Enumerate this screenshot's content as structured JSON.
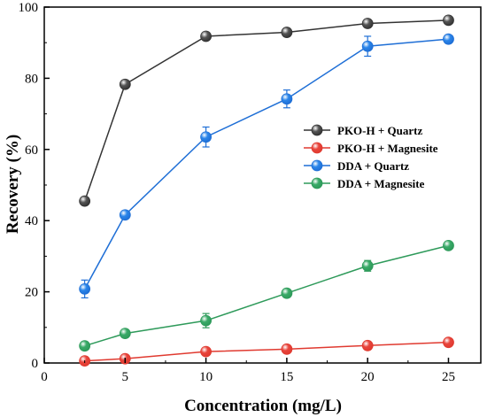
{
  "chart_data": {
    "type": "line",
    "xlabel": "Concentration (mg/L)",
    "ylabel": "Recovery (%)",
    "xlim": [
      0,
      27
    ],
    "ylim": [
      0,
      100
    ],
    "xticks": [
      0,
      5,
      10,
      15,
      20,
      25
    ],
    "yticks": [
      0,
      20,
      40,
      60,
      80,
      100
    ],
    "x": [
      2.5,
      5,
      10,
      15,
      20,
      25
    ],
    "grid": false,
    "legend_position": "right",
    "series": [
      {
        "name": "PKO-H + Quartz",
        "color": "#333333",
        "marker_fill": "#555555",
        "values": [
          45.5,
          78.3,
          91.8,
          92.9,
          95.4,
          96.3
        ],
        "errors": [
          0,
          0,
          0,
          0,
          0,
          0
        ]
      },
      {
        "name": "PKO-H + Magnesite",
        "color": "#e03a30",
        "marker_fill": "#e8453c",
        "values": [
          0.6,
          1.2,
          3.2,
          3.9,
          4.9,
          5.8
        ],
        "errors": [
          0,
          0,
          0,
          0,
          0,
          0
        ]
      },
      {
        "name": "DDA + Quartz",
        "color": "#1f6fd6",
        "marker_fill": "#2b86ea",
        "values": [
          20.8,
          41.6,
          63.5,
          74.2,
          89.0,
          91.0
        ],
        "errors": [
          2.5,
          0,
          2.8,
          2.5,
          2.8,
          0
        ]
      },
      {
        "name": "DDA + Magnesite",
        "color": "#2e9a5a",
        "marker_fill": "#3aaa68",
        "values": [
          4.8,
          8.3,
          11.9,
          19.6,
          27.3,
          33.0
        ],
        "errors": [
          0,
          0,
          2.0,
          0,
          1.5,
          0
        ]
      }
    ]
  }
}
